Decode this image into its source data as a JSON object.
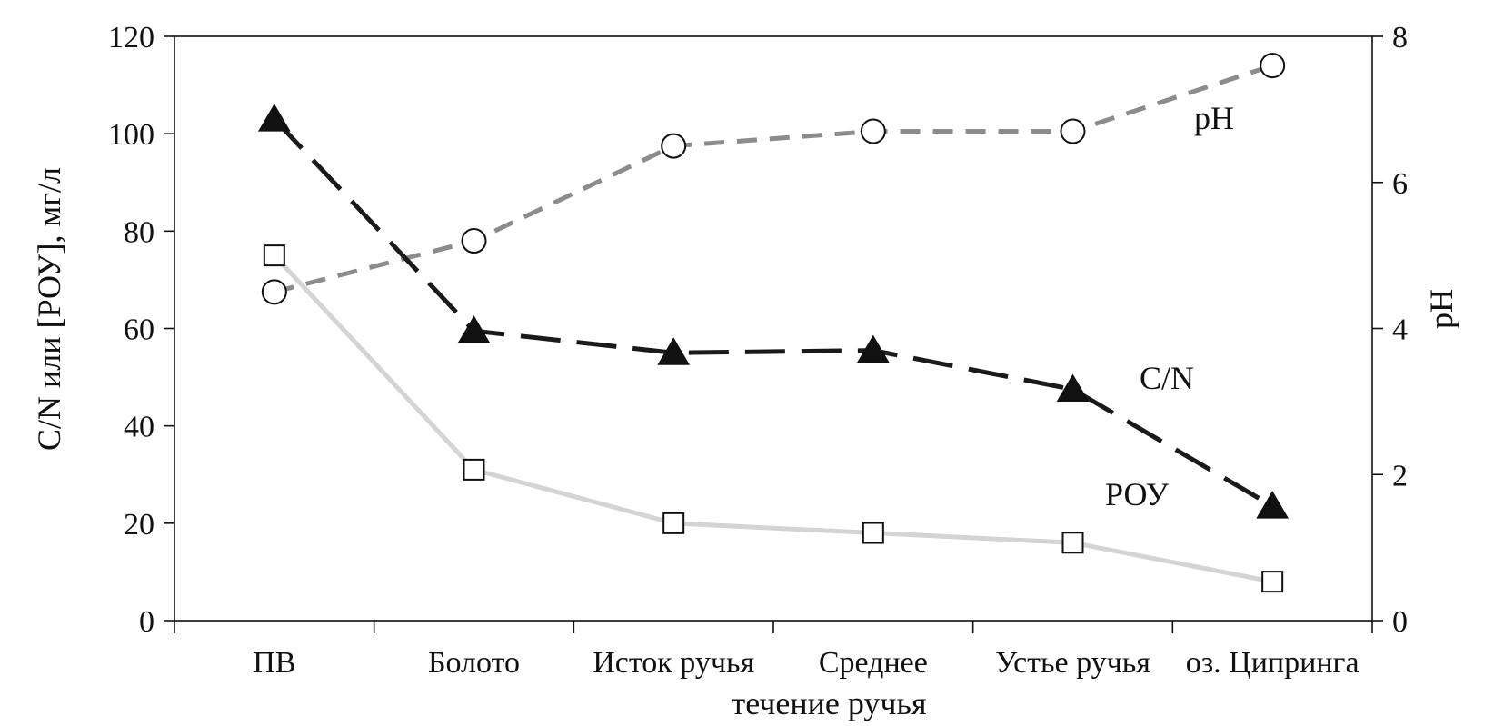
{
  "chart_data": {
    "type": "line",
    "categories": [
      "ПВ",
      "Болото",
      "Исток ручья",
      "Среднее",
      "Устье ручья",
      "оз. Ципринга"
    ],
    "xlabel": "течение ручья",
    "ylabel": "C/N или [РОУ], мг/л",
    "y2label": "pH",
    "ylim": [
      0,
      120
    ],
    "yticks": [
      "0",
      "20",
      "40",
      "60",
      "80",
      "100",
      "120"
    ],
    "y2lim": [
      0,
      8
    ],
    "y2ticks": [
      "0",
      "2",
      "4",
      "6",
      "8"
    ],
    "grid": false,
    "series": [
      {
        "name": "pH",
        "axis": "right",
        "marker": "circle",
        "line": "dashed",
        "color": "#8c8c8c",
        "values": [
          4.5,
          5.2,
          6.5,
          6.7,
          6.7,
          7.6
        ]
      },
      {
        "name": "C/N",
        "axis": "left",
        "marker": "triangle",
        "line": "long-dashed",
        "color": "#1a1a1a",
        "values": [
          103,
          59.5,
          55,
          55.5,
          47.5,
          23.5
        ]
      },
      {
        "name": "РОУ",
        "axis": "left",
        "marker": "square",
        "line": "solid",
        "color": "#d4d4d4",
        "values": [
          75,
          31,
          20,
          18,
          16,
          8
        ]
      }
    ]
  }
}
